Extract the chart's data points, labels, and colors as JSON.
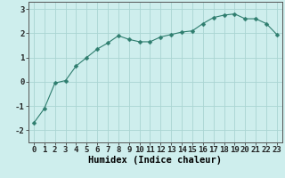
{
  "x": [
    0,
    1,
    2,
    3,
    4,
    5,
    6,
    7,
    8,
    9,
    10,
    11,
    12,
    13,
    14,
    15,
    16,
    17,
    18,
    19,
    20,
    21,
    22,
    23
  ],
  "y": [
    -1.7,
    -1.1,
    -0.05,
    0.05,
    0.65,
    1.0,
    1.35,
    1.6,
    1.9,
    1.75,
    1.65,
    1.65,
    1.85,
    1.95,
    2.05,
    2.1,
    2.4,
    2.65,
    2.75,
    2.8,
    2.6,
    2.6,
    2.4,
    1.95
  ],
  "line_color": "#2e7d6e",
  "marker": "D",
  "marker_size": 2.5,
  "bg_color": "#ceeeed",
  "grid_color": "#aad4d2",
  "xlabel": "Humidex (Indice chaleur)",
  "xlim": [
    -0.5,
    23.5
  ],
  "ylim": [
    -2.5,
    3.3
  ],
  "yticks": [
    -2,
    -1,
    0,
    1,
    2,
    3
  ],
  "xticks": [
    0,
    1,
    2,
    3,
    4,
    5,
    6,
    7,
    8,
    9,
    10,
    11,
    12,
    13,
    14,
    15,
    16,
    17,
    18,
    19,
    20,
    21,
    22,
    23
  ],
  "label_fontsize": 7.5,
  "tick_fontsize": 6.5
}
